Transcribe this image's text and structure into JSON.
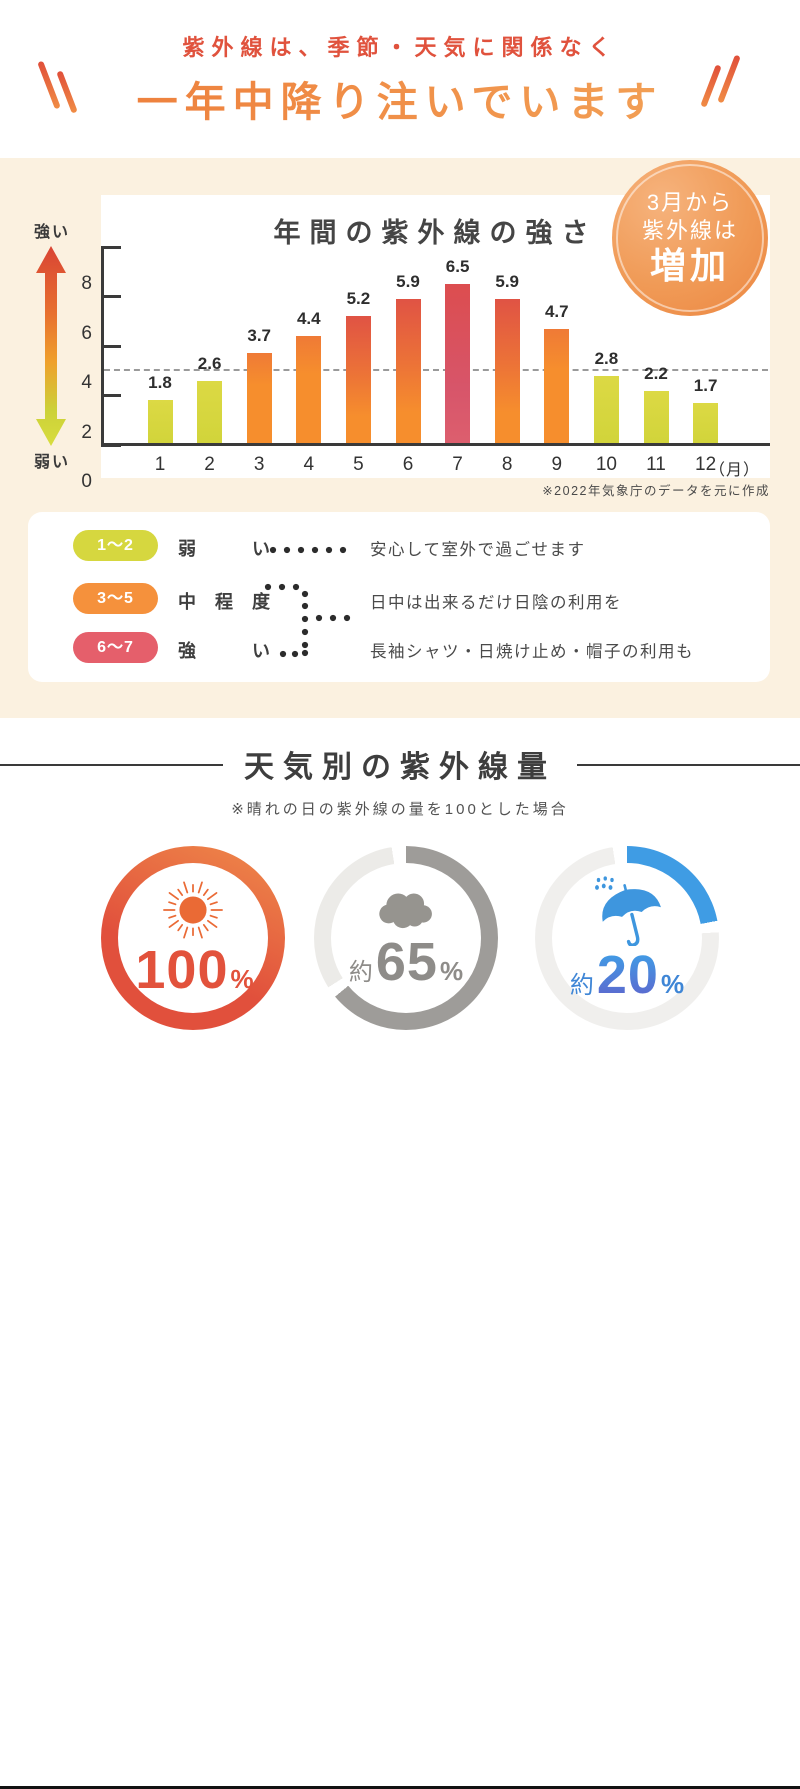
{
  "header": {
    "line1": "紫外線は、季節・天気に関係なく",
    "line2": "一年中降り注いでいます"
  },
  "badge": {
    "line1": "3月から",
    "line2": "紫外線は",
    "line3": "増加"
  },
  "chart_data": {
    "type": "bar",
    "title": "年間の紫外線の強さ",
    "categories": [
      "1",
      "2",
      "3",
      "4",
      "5",
      "6",
      "7",
      "8",
      "9",
      "10",
      "11",
      "12"
    ],
    "unit_label": "（月）",
    "values": [
      1.8,
      2.6,
      3.7,
      4.4,
      5.2,
      5.9,
      6.5,
      5.9,
      4.7,
      2.8,
      2.2,
      1.7
    ],
    "levels": [
      "low",
      "low",
      "mid",
      "mid",
      "mid-high",
      "mid-high",
      "high",
      "mid-high",
      "mid",
      "low",
      "low",
      "low"
    ],
    "y_ticks": [
      8,
      6,
      4,
      2,
      0
    ],
    "ylim": [
      0,
      8
    ],
    "dashed_line_at": 3,
    "grid": "off",
    "y_axis_top_label": "強い",
    "y_axis_bottom_label": "弱い",
    "note": "※2022年気象庁のデータを元に作成"
  },
  "legend": {
    "rows": [
      {
        "range": "1〜2",
        "label": "弱い",
        "desc": "安心して室外で過ごせます",
        "color": "#d6d73f"
      },
      {
        "range": "3〜5",
        "label": "中程度",
        "desc": "日中は出来るだけ日陰の利用を",
        "color": "#f5913c"
      },
      {
        "range": "6〜7",
        "label": "強い",
        "desc": "長袖シャツ・日焼け止め・帽子の利用も",
        "color": "#e55f6b"
      }
    ]
  },
  "weather": {
    "title": "天気別の紫外線量",
    "subtitle": "※晴れの日の紫外線の量を100とした場合",
    "rings": [
      {
        "icon": "sun-icon",
        "approx": "",
        "value": "100",
        "unit": "%",
        "percent": 100,
        "arc": 100,
        "color": "#e1503c",
        "track": "#e1503c"
      },
      {
        "icon": "cloud-icon",
        "approx": "約",
        "value": "65",
        "unit": "%",
        "percent": 65,
        "arc": 64,
        "color": "#9e9c99",
        "track": "#ecebe8"
      },
      {
        "icon": "umbrella-icon",
        "approx": "約",
        "value": "20",
        "unit": "%",
        "percent": 20,
        "arc": 22,
        "color": "#3f9ce4",
        "track": "#f0efed"
      }
    ]
  },
  "colors": {
    "cream_bg": "#fbf1e0",
    "header_red": "#e0523d",
    "header_orange": "#ee8040",
    "bar_low": "#d6d73f",
    "bar_mid": "#f68c2e",
    "bar_high": "#d95364",
    "badge_orange": "#f09a56",
    "ring_sun": "#e1503c",
    "ring_cloud": "#9e9c99",
    "ring_rain": "#3f9ce4"
  }
}
